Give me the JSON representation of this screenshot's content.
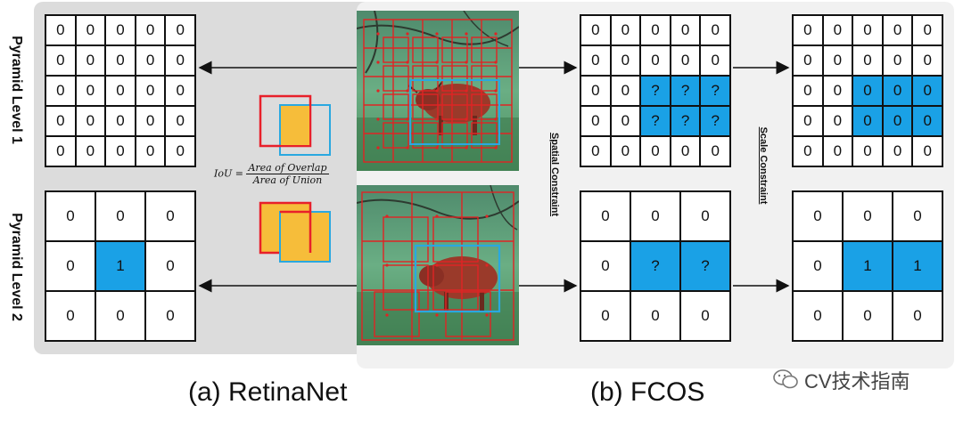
{
  "labels": {
    "level1": "Pyramid Level 1",
    "level2": "Pyramid Level 2",
    "spatial": "Spatial Constraint",
    "scale": "Scale Constraint",
    "caption_a": "(a) RetinaNet",
    "caption_b": "(b) FCOS",
    "watermark": "CV技术指南"
  },
  "iou": {
    "lhs": "IoU =",
    "numerator": "Area of Overlap",
    "denominator": "Area of Union"
  },
  "colors": {
    "highlight": "#1aa1e6",
    "box_red": "#e8202a",
    "box_blue": "#2aa8e0",
    "overlap_fill": "#f6bd3a"
  },
  "grids": {
    "retina_l1": [
      [
        "0",
        "0",
        "0",
        "0",
        "0"
      ],
      [
        "0",
        "0",
        "0",
        "0",
        "0"
      ],
      [
        "0",
        "0",
        "0",
        "0",
        "0"
      ],
      [
        "0",
        "0",
        "0",
        "0",
        "0"
      ],
      [
        "0",
        "0",
        "0",
        "0",
        "0"
      ]
    ],
    "retina_l2": [
      [
        "0",
        "0",
        "0"
      ],
      [
        "0",
        "1",
        "0"
      ],
      [
        "0",
        "0",
        "0"
      ]
    ],
    "fcos_l1_spatial": [
      [
        "0",
        "0",
        "0",
        "0",
        "0"
      ],
      [
        "0",
        "0",
        "0",
        "0",
        "0"
      ],
      [
        "0",
        "0",
        "?",
        "?",
        "?"
      ],
      [
        "0",
        "0",
        "?",
        "?",
        "?"
      ],
      [
        "0",
        "0",
        "0",
        "0",
        "0"
      ]
    ],
    "fcos_l1_scale": [
      [
        "0",
        "0",
        "0",
        "0",
        "0"
      ],
      [
        "0",
        "0",
        "0",
        "0",
        "0"
      ],
      [
        "0",
        "0",
        "0",
        "0",
        "0"
      ],
      [
        "0",
        "0",
        "0",
        "0",
        "0"
      ],
      [
        "0",
        "0",
        "0",
        "0",
        "0"
      ]
    ],
    "fcos_l2_spatial": [
      [
        "0",
        "0",
        "0"
      ],
      [
        "0",
        "?",
        "?"
      ],
      [
        "0",
        "0",
        "0"
      ]
    ],
    "fcos_l2_scale": [
      [
        "0",
        "0",
        "0"
      ],
      [
        "0",
        "1",
        "1"
      ],
      [
        "0",
        "0",
        "0"
      ]
    ]
  },
  "highlights": {
    "retina_l1": [],
    "retina_l2": [
      [
        1,
        1
      ]
    ],
    "fcos_l1_spatial": [
      [
        2,
        2
      ],
      [
        2,
        3
      ],
      [
        2,
        4
      ],
      [
        3,
        2
      ],
      [
        3,
        3
      ],
      [
        3,
        4
      ]
    ],
    "fcos_l1_scale": [
      [
        2,
        2
      ],
      [
        2,
        3
      ],
      [
        2,
        4
      ],
      [
        3,
        2
      ],
      [
        3,
        3
      ],
      [
        3,
        4
      ]
    ],
    "fcos_l2_spatial": [
      [
        1,
        1
      ],
      [
        1,
        2
      ]
    ],
    "fcos_l2_scale": [
      [
        1,
        1
      ],
      [
        1,
        2
      ]
    ]
  }
}
